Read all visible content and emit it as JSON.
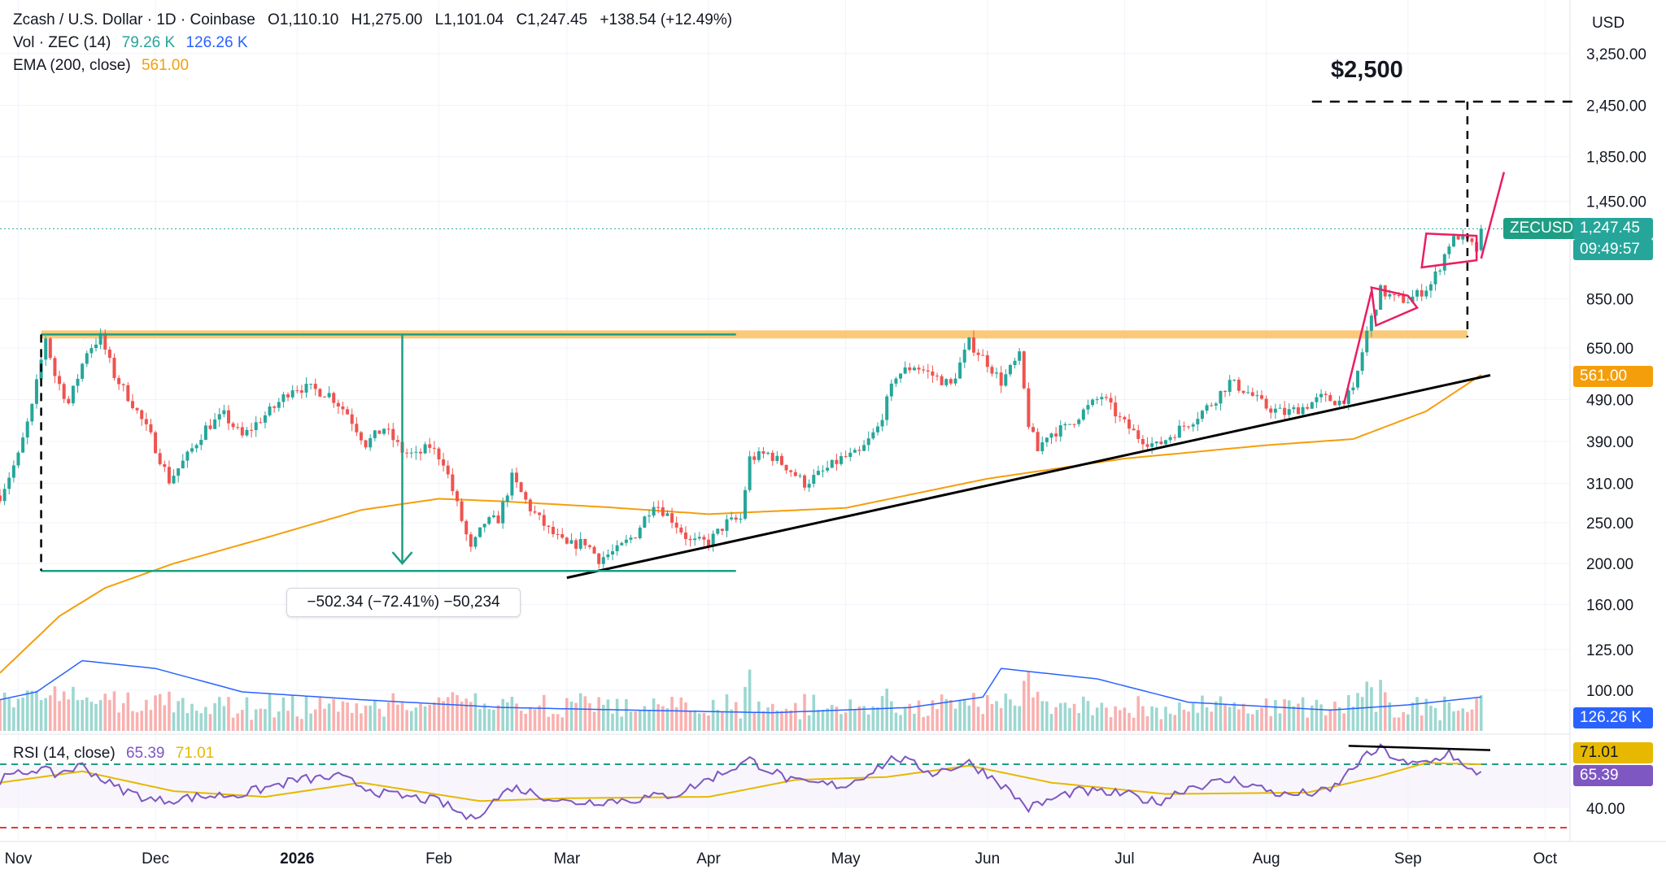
{
  "header": {
    "symbol_line": "Zcash / U.S. Dollar · 1D · Coinbase",
    "open": "O1,110.10",
    "high": "H1,275.00",
    "low": "L1,101.04",
    "close": "C1,247.45",
    "change": "+138.54 (+12.49%)",
    "vol_label": "Vol · ZEC (14)",
    "vol_value": "79.26 K",
    "vol_ma": "126.26 K",
    "ema_label": "EMA (200, close)",
    "ema_value": "561.00",
    "rsi_label": "RSI (14, close)",
    "rsi_value": "65.39",
    "rsi_ma": "71.01"
  },
  "currency": "USD",
  "price_axis": [
    "3,250.00",
    "2,450.00",
    "1,850.00",
    "1,450.00",
    "850.00",
    "650.00",
    "490.00",
    "390.00",
    "310.00",
    "250.00",
    "200.00",
    "160.00",
    "125.00",
    "100.00"
  ],
  "rsi_axis": [
    "40.00"
  ],
  "time_axis": [
    {
      "label": "Nov",
      "bold": false
    },
    {
      "label": "Dec",
      "bold": false
    },
    {
      "label": "2026",
      "bold": true
    },
    {
      "label": "Feb",
      "bold": false
    },
    {
      "label": "Mar",
      "bold": false
    },
    {
      "label": "Apr",
      "bold": false
    },
    {
      "label": "May",
      "bold": false
    },
    {
      "label": "Jun",
      "bold": false
    },
    {
      "label": "Jul",
      "bold": false
    },
    {
      "label": "Aug",
      "bold": false
    },
    {
      "label": "Sep",
      "bold": false
    },
    {
      "label": "Oct",
      "bold": false
    }
  ],
  "tags": {
    "ticker": "ZECUSD",
    "last_price": "1,247.45",
    "countdown": "09:49:57",
    "ema": "561.00",
    "volume_ma": "126.26 K",
    "rsi_ma": "71.01",
    "rsi": "65.39"
  },
  "annotations": {
    "measure": "−502.34 (−72.41%) −50,234",
    "target": "$2,500"
  },
  "colors": {
    "up": "#26a69a",
    "down": "#ef5350",
    "ema": "#f59e0b",
    "vol_ma": "#2962ff",
    "rsi": "#7e57c2",
    "rsi_ma": "#e6b800",
    "resistance": "#f9c46b",
    "measure": "#1e9e84",
    "pennant": "#e91e63"
  },
  "chart_data": {
    "type": "candlestick",
    "title": "Zcash / U.S. Dollar · 1D · Coinbase",
    "y_scale": "log",
    "ylim": [
      90,
      3600
    ],
    "x_range": [
      "2025-10-28",
      "2026-10-10"
    ],
    "price_path": [
      [
        "2025-10-28",
        290
      ],
      [
        "2025-11-01",
        360
      ],
      [
        "2025-11-04",
        470
      ],
      [
        "2025-11-07",
        690
      ],
      [
        "2025-11-09",
        560
      ],
      [
        "2025-11-12",
        480
      ],
      [
        "2025-11-16",
        640
      ],
      [
        "2025-11-19",
        690
      ],
      [
        "2025-11-22",
        560
      ],
      [
        "2025-11-26",
        480
      ],
      [
        "2025-11-30",
        400
      ],
      [
        "2025-12-04",
        315
      ],
      [
        "2025-12-08",
        360
      ],
      [
        "2025-12-12",
        420
      ],
      [
        "2025-12-16",
        450
      ],
      [
        "2025-12-20",
        400
      ],
      [
        "2025-12-24",
        440
      ],
      [
        "2025-12-27",
        470
      ],
      [
        "2025-12-31",
        525
      ],
      [
        "2026-01-04",
        520
      ],
      [
        "2026-01-08",
        505
      ],
      [
        "2026-01-12",
        455
      ],
      [
        "2026-01-16",
        385
      ],
      [
        "2026-01-20",
        420
      ],
      [
        "2026-01-24",
        370
      ],
      [
        "2026-01-27",
        360
      ],
      [
        "2026-01-30",
        380
      ],
      [
        "2026-02-02",
        350
      ],
      [
        "2026-02-05",
        275
      ],
      [
        "2026-02-08",
        215
      ],
      [
        "2026-02-11",
        250
      ],
      [
        "2026-02-14",
        255
      ],
      [
        "2026-02-17",
        320
      ],
      [
        "2026-02-21",
        270
      ],
      [
        "2026-02-25",
        240
      ],
      [
        "2026-03-01",
        220
      ],
      [
        "2026-03-05",
        225
      ],
      [
        "2026-03-08",
        205
      ],
      [
        "2026-03-12",
        215
      ],
      [
        "2026-03-16",
        235
      ],
      [
        "2026-03-20",
        280
      ],
      [
        "2026-03-24",
        255
      ],
      [
        "2026-03-28",
        225
      ],
      [
        "2026-04-01",
        225
      ],
      [
        "2026-04-05",
        250
      ],
      [
        "2026-04-08",
        255
      ],
      [
        "2026-04-10",
        355
      ],
      [
        "2026-04-14",
        365
      ],
      [
        "2026-04-18",
        340
      ],
      [
        "2026-04-22",
        310
      ],
      [
        "2026-04-26",
        330
      ],
      [
        "2026-04-30",
        355
      ],
      [
        "2026-05-04",
        365
      ],
      [
        "2026-05-08",
        420
      ],
      [
        "2026-05-12",
        560
      ],
      [
        "2026-05-16",
        590
      ],
      [
        "2026-05-20",
        560
      ],
      [
        "2026-05-24",
        530
      ],
      [
        "2026-05-28",
        670
      ],
      [
        "2026-06-01",
        600
      ],
      [
        "2026-06-04",
        540
      ],
      [
        "2026-06-08",
        620
      ],
      [
        "2026-06-10",
        430
      ],
      [
        "2026-06-12",
        370
      ],
      [
        "2026-06-14",
        405
      ],
      [
        "2026-06-18",
        420
      ],
      [
        "2026-06-22",
        460
      ],
      [
        "2026-06-26",
        500
      ],
      [
        "2026-06-30",
        440
      ],
      [
        "2026-07-04",
        400
      ],
      [
        "2026-07-08",
        380
      ],
      [
        "2026-07-12",
        410
      ],
      [
        "2026-07-16",
        440
      ],
      [
        "2026-07-20",
        480
      ],
      [
        "2026-07-24",
        540
      ],
      [
        "2026-07-28",
        510
      ],
      [
        "2026-08-01",
        470
      ],
      [
        "2026-08-05",
        455
      ],
      [
        "2026-08-09",
        470
      ],
      [
        "2026-08-13",
        495
      ],
      [
        "2026-08-17",
        485
      ],
      [
        "2026-08-20",
        510
      ],
      [
        "2026-08-23",
        710
      ],
      [
        "2026-08-26",
        890
      ],
      [
        "2026-08-29",
        850
      ],
      [
        "2026-09-01",
        845
      ],
      [
        "2026-09-03",
        870
      ],
      [
        "2026-09-06",
        920
      ],
      [
        "2026-09-08",
        1020
      ],
      [
        "2026-09-10",
        1150
      ],
      [
        "2026-09-12",
        1200
      ],
      [
        "2026-09-14",
        1160
      ],
      [
        "2026-09-16",
        1110
      ],
      [
        "2026-09-17",
        1247.45
      ]
    ],
    "ema_200": [
      [
        "2025-10-28",
        110
      ],
      [
        "2025-11-10",
        150
      ],
      [
        "2025-11-20",
        175
      ],
      [
        "2025-12-05",
        200
      ],
      [
        "2025-12-25",
        230
      ],
      [
        "2026-01-15",
        268
      ],
      [
        "2026-02-01",
        285
      ],
      [
        "2026-02-15",
        281
      ],
      [
        "2026-03-10",
        272
      ],
      [
        "2026-04-01",
        262
      ],
      [
        "2026-05-01",
        271
      ],
      [
        "2026-06-01",
        318
      ],
      [
        "2026-07-01",
        355
      ],
      [
        "2026-08-01",
        382
      ],
      [
        "2026-08-20",
        395
      ],
      [
        "2026-09-05",
        460
      ],
      [
        "2026-09-17",
        561
      ]
    ],
    "volume_ma_14": [
      [
        "2025-10-28",
        100
      ],
      [
        "2025-11-05",
        103
      ],
      [
        "2025-11-15",
        115
      ],
      [
        "2025-12-01",
        112
      ],
      [
        "2025-12-20",
        103
      ],
      [
        "2026-01-15",
        100
      ],
      [
        "2026-02-15",
        97
      ],
      [
        "2026-03-15",
        96
      ],
      [
        "2026-04-15",
        95
      ],
      [
        "2026-05-15",
        97
      ],
      [
        "2026-05-31",
        101
      ],
      [
        "2026-06-04",
        112
      ],
      [
        "2026-06-25",
        108
      ],
      [
        "2026-07-15",
        99
      ],
      [
        "2026-08-15",
        96
      ],
      [
        "2026-09-01",
        98
      ],
      [
        "2026-09-17",
        101
      ]
    ],
    "rsi_14": [
      [
        "2025-10-28",
        60
      ],
      [
        "2025-11-05",
        68
      ],
      [
        "2025-11-09",
        64
      ],
      [
        "2025-11-15",
        70
      ],
      [
        "2025-11-22",
        55
      ],
      [
        "2025-12-01",
        45
      ],
      [
        "2025-12-10",
        48
      ],
      [
        "2025-12-20",
        50
      ],
      [
        "2026-01-01",
        60
      ],
      [
        "2026-01-10",
        62
      ],
      [
        "2026-01-20",
        50
      ],
      [
        "2026-02-01",
        45
      ],
      [
        "2026-02-08",
        32
      ],
      [
        "2026-02-17",
        55
      ],
      [
        "2026-03-01",
        44
      ],
      [
        "2026-03-15",
        46
      ],
      [
        "2026-03-25",
        50
      ],
      [
        "2026-04-10",
        74
      ],
      [
        "2026-04-20",
        58
      ],
      [
        "2026-05-01",
        56
      ],
      [
        "2026-05-12",
        76
      ],
      [
        "2026-05-20",
        65
      ],
      [
        "2026-05-28",
        72
      ],
      [
        "2026-06-03",
        60
      ],
      [
        "2026-06-10",
        40
      ],
      [
        "2026-06-20",
        52
      ],
      [
        "2026-07-01",
        50
      ],
      [
        "2026-07-08",
        44
      ],
      [
        "2026-07-15",
        55
      ],
      [
        "2026-07-25",
        60
      ],
      [
        "2026-08-05",
        49
      ],
      [
        "2026-08-15",
        52
      ],
      [
        "2026-08-22",
        75
      ],
      [
        "2026-08-26",
        82
      ],
      [
        "2026-09-01",
        70
      ],
      [
        "2026-09-07",
        74
      ],
      [
        "2026-09-10",
        80
      ],
      [
        "2026-09-14",
        66
      ],
      [
        "2026-09-17",
        65.39
      ]
    ],
    "rsi_ma_14": [
      [
        "2025-10-28",
        58
      ],
      [
        "2025-11-15",
        66
      ],
      [
        "2025-12-05",
        52
      ],
      [
        "2025-12-25",
        48
      ],
      [
        "2026-01-15",
        58
      ],
      [
        "2026-02-10",
        45
      ],
      [
        "2026-03-01",
        47
      ],
      [
        "2026-04-01",
        48
      ],
      [
        "2026-04-20",
        60
      ],
      [
        "2026-05-10",
        62
      ],
      [
        "2026-05-28",
        70
      ],
      [
        "2026-06-15",
        58
      ],
      [
        "2026-07-10",
        50
      ],
      [
        "2026-08-10",
        51
      ],
      [
        "2026-08-25",
        62
      ],
      [
        "2026-09-05",
        72
      ],
      [
        "2026-09-17",
        71.01
      ]
    ]
  }
}
